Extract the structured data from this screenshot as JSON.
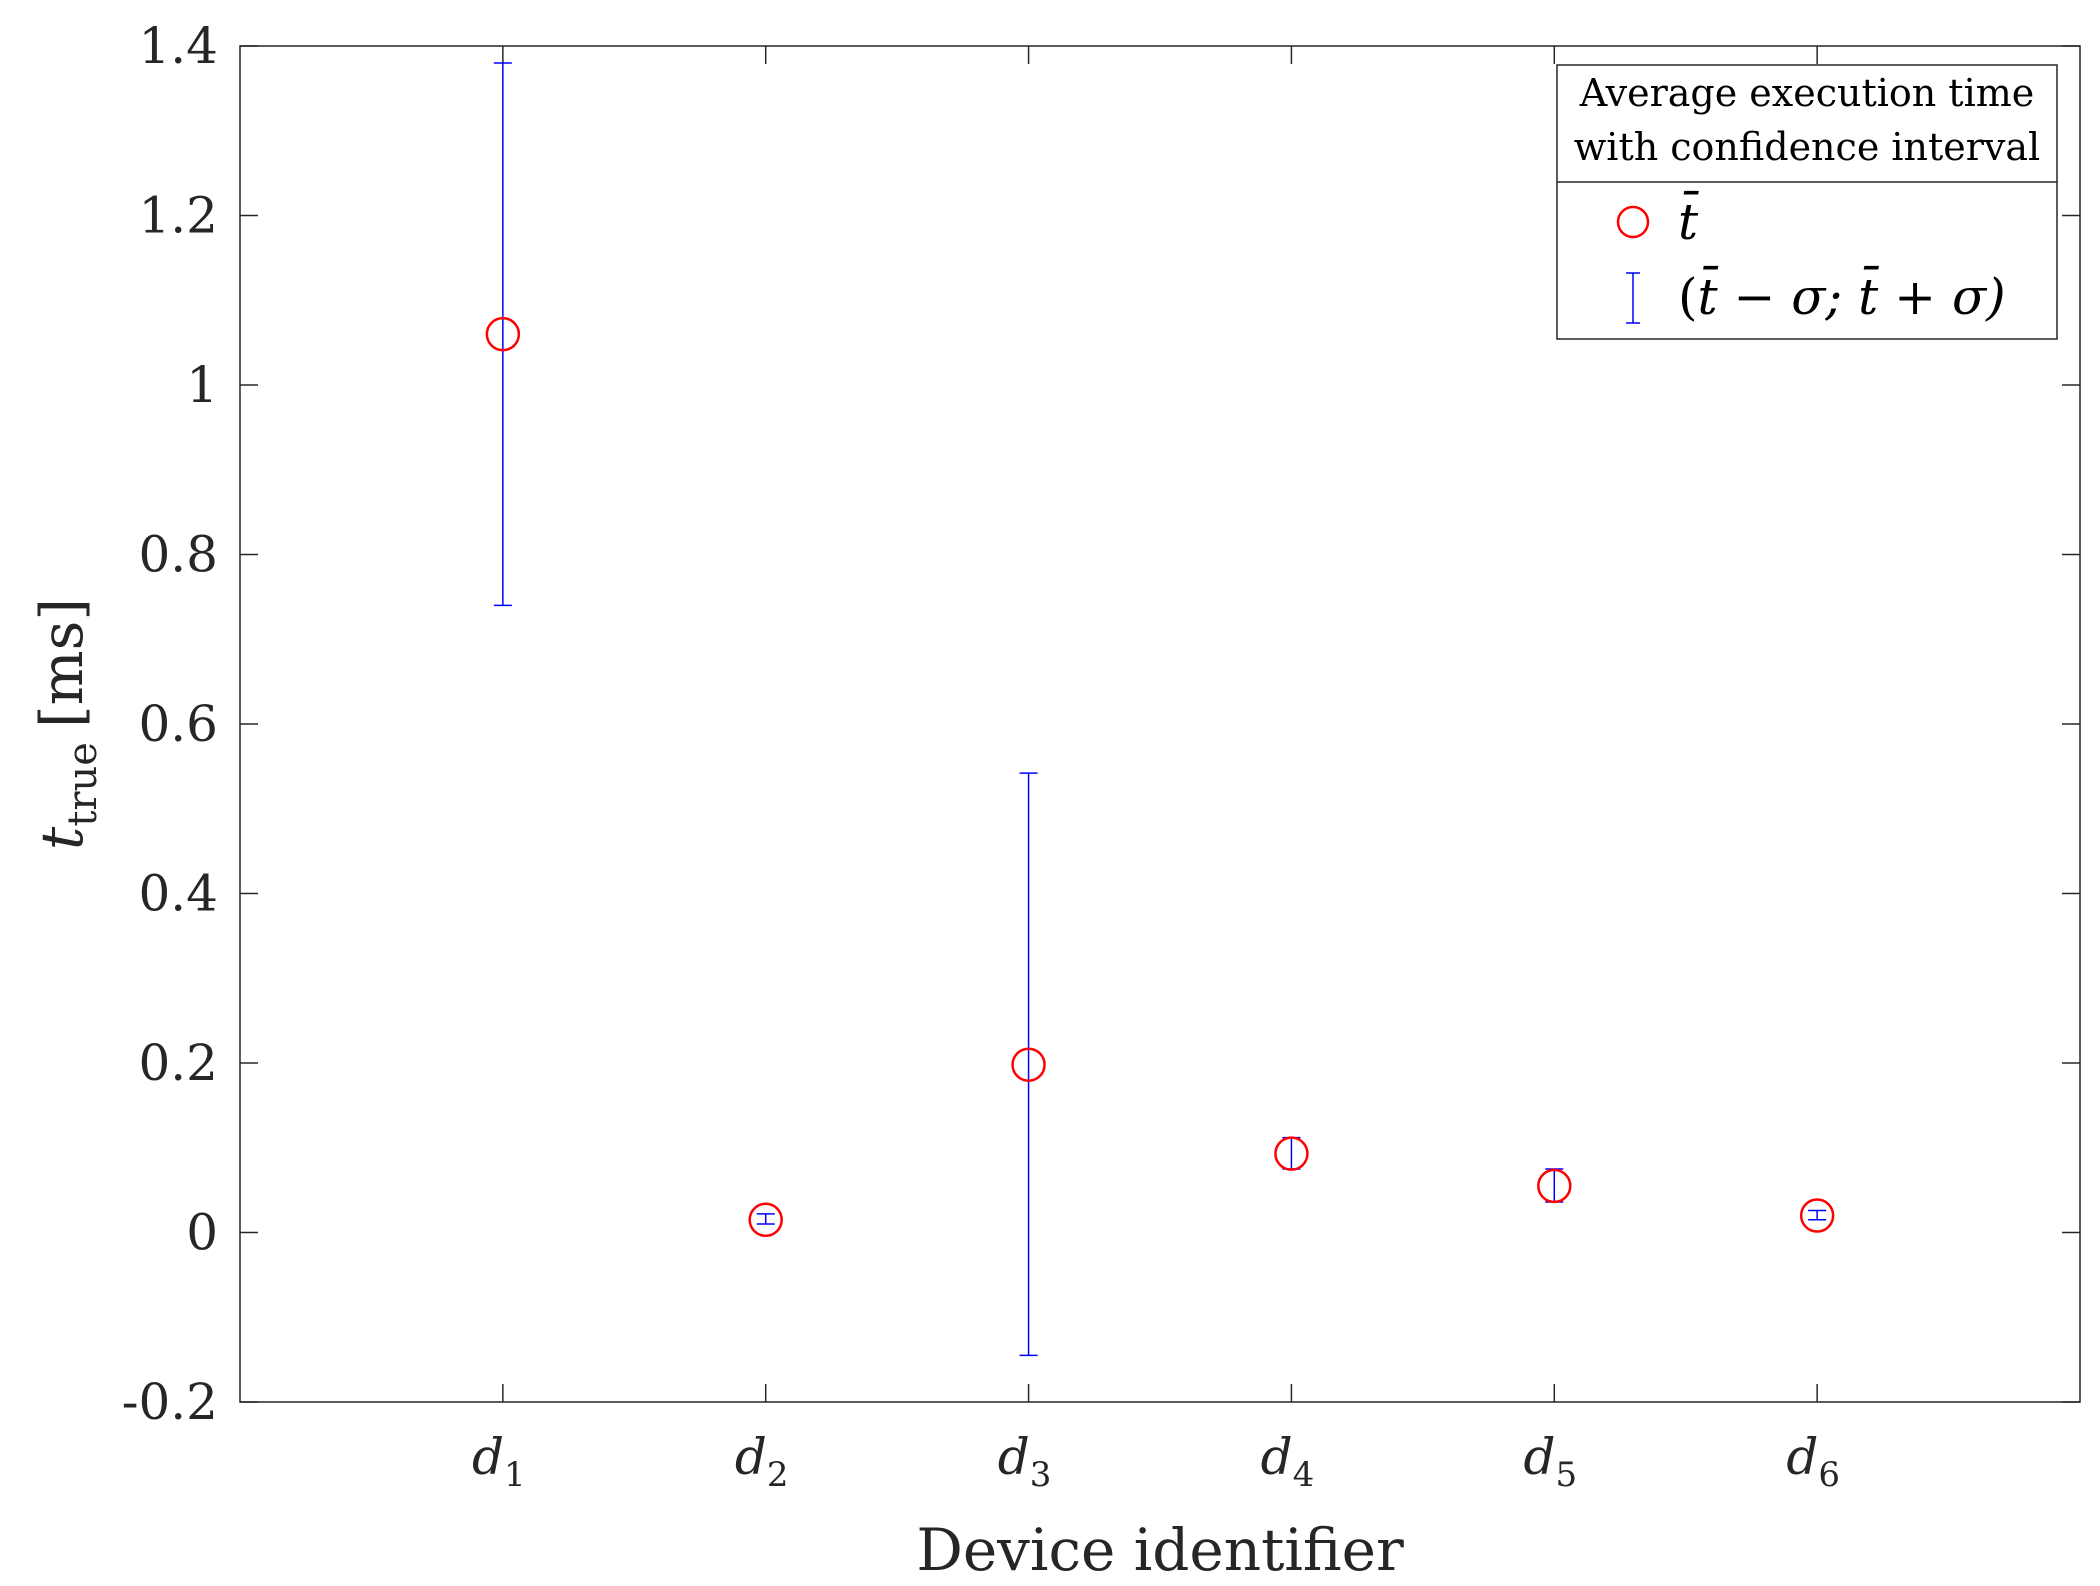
{
  "chart_data": {
    "type": "scatter",
    "title": "",
    "xlabel": "Device identifier",
    "ylabel": {
      "base": "t",
      "subscript": "true",
      "unit": "[ms]"
    },
    "categories": [
      {
        "base": "d",
        "sub": "1"
      },
      {
        "base": "d",
        "sub": "2"
      },
      {
        "base": "d",
        "sub": "3"
      },
      {
        "base": "d",
        "sub": "4"
      },
      {
        "base": "d",
        "sub": "5"
      },
      {
        "base": "d",
        "sub": "6"
      }
    ],
    "xlim": [
      0,
      7
    ],
    "ylim": [
      -0.2,
      1.4
    ],
    "yticks": [
      -0.2,
      0,
      0.2,
      0.4,
      0.6,
      0.8,
      1,
      1.2,
      1.4
    ],
    "ytick_labels": [
      "-0.2",
      "0",
      "0.2",
      "0.4",
      "0.6",
      "0.8",
      "1",
      "1.2",
      "1.4"
    ],
    "series": [
      {
        "name": "t̄",
        "marker": "circle",
        "color": "#ff0000",
        "values": [
          1.06,
          0.015,
          0.198,
          0.093,
          0.055,
          0.02
        ]
      },
      {
        "name": "(t̄ − σ; t̄ + σ)",
        "marker": "errorbar",
        "color": "#0000ff",
        "lower": [
          0.74,
          0.01,
          -0.145,
          0.075,
          0.036,
          0.015
        ],
        "upper": [
          1.38,
          0.022,
          0.542,
          0.112,
          0.075,
          0.026
        ]
      }
    ],
    "grid": false,
    "legend": {
      "placement": "top-right",
      "title_lines": [
        "Average execution time",
        "with confidence interval"
      ],
      "entries": [
        {
          "label": "t̄",
          "parts": [
            "t̄"
          ]
        },
        {
          "label": "(t̄ − σ; t̄ + σ)",
          "parts": [
            "(",
            "t̄",
            " − σ; ",
            "t̄",
            " + σ)"
          ]
        }
      ]
    }
  },
  "colors": {
    "axis": "#262626",
    "marker": "#ff0000",
    "errorbar": "#0000ff"
  }
}
